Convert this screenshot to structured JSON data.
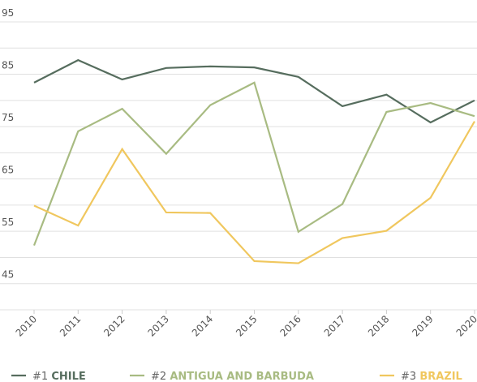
{
  "chart_data": {
    "type": "line",
    "x": [
      2010,
      2011,
      2012,
      2013,
      2014,
      2015,
      2016,
      2017,
      2018,
      2019,
      2020
    ],
    "series": [
      {
        "rank": "#1",
        "name": "CHILE",
        "color": "#566d5e",
        "values": [
          83.4,
          87.7,
          84.0,
          86.2,
          86.5,
          86.3,
          84.5,
          78.9,
          81.1,
          75.8,
          80.0
        ]
      },
      {
        "rank": "#2",
        "name": "ANTIGUA AND BARBUDA",
        "color": "#a8bb82",
        "values": [
          52.3,
          74.1,
          78.4,
          69.8,
          79.1,
          83.4,
          54.9,
          60.2,
          77.8,
          79.5,
          77.0
        ]
      },
      {
        "rank": "#3",
        "name": "BRAZIL",
        "color": "#f0c75e",
        "values": [
          59.9,
          56.1,
          70.7,
          58.6,
          58.5,
          49.3,
          48.9,
          53.7,
          55.1,
          61.4,
          76.0
        ]
      }
    ],
    "xlim": [
      2010,
      2020
    ],
    "ylim": [
      40,
      95
    ],
    "yticks": [
      45,
      55,
      65,
      75,
      85,
      95
    ],
    "minor_yticks": [
      40,
      50,
      60,
      70,
      80,
      90
    ],
    "grid": true
  }
}
